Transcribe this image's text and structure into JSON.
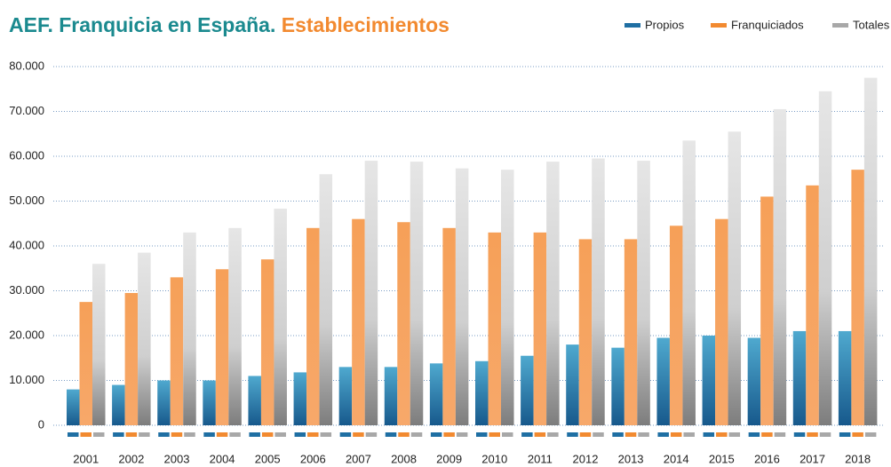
{
  "chart_data": {
    "type": "bar",
    "title": "AEF. Franquicia en España.",
    "title_highlight": "Establecimientos",
    "categories": [
      "2001",
      "2002",
      "2003",
      "2004",
      "2005",
      "2006",
      "2007",
      "2008",
      "2009",
      "2010",
      "2011",
      "2012",
      "2013",
      "2014",
      "2015",
      "2016",
      "2017",
      "2018"
    ],
    "series": [
      {
        "name": "Propios",
        "color": "#1f6fa3",
        "values": [
          8000,
          9000,
          10000,
          10000,
          11000,
          11800,
          13000,
          13000,
          13800,
          14300,
          15500,
          18000,
          17300,
          19500,
          20000,
          19500,
          21000,
          21000
        ]
      },
      {
        "name": "Franquiciados",
        "color": "#f28a30",
        "values": [
          27500,
          29500,
          33000,
          34800,
          37000,
          44000,
          46000,
          45300,
          44000,
          43000,
          43000,
          41500,
          41500,
          44500,
          46000,
          51000,
          53500,
          57000
        ]
      },
      {
        "name": "Totales",
        "color": "#a8a8a8",
        "values": [
          36000,
          38500,
          43000,
          44000,
          48300,
          56000,
          59000,
          58800,
          57300,
          57000,
          58800,
          59500,
          59000,
          63500,
          65500,
          70500,
          74500,
          77500
        ]
      }
    ],
    "ylim": [
      0,
      80000
    ],
    "yticks": [
      0,
      {
        "value": 10000,
        "label": "10.000"
      },
      {
        "value": 20000,
        "label": "20.000"
      },
      {
        "value": 30000,
        "label": "30.000"
      },
      {
        "value": 40000,
        "label": "40.000"
      },
      {
        "value": 50000,
        "label": "50.000"
      },
      {
        "value": 60000,
        "label": "60.000"
      },
      {
        "value": 70000,
        "label": "70.000"
      },
      {
        "value": 80000,
        "label": "80.000"
      }
    ],
    "grid": true,
    "legend": "top-right"
  }
}
